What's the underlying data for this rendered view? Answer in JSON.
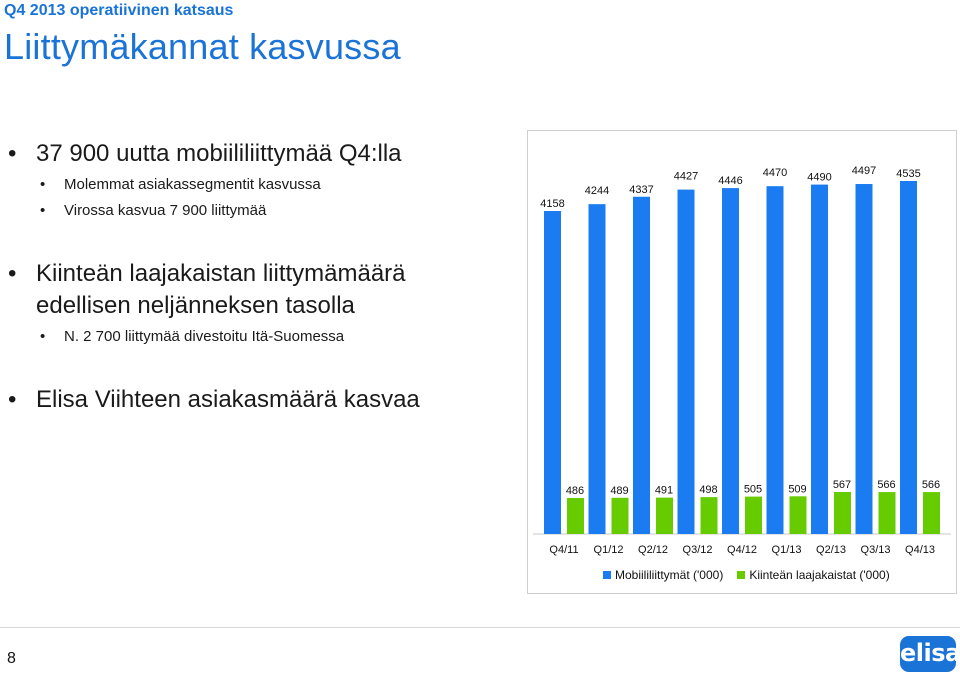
{
  "header": {
    "kicker": "Q4 2013 operatiivinen katsaus",
    "title": "Liittymäkannat kasvussa"
  },
  "bullets": {
    "b1": "37 900 uutta mobiililiittymää Q4:lla",
    "b1_sub1": "Molemmat asiakassegmentit kasvussa",
    "b1_sub2": "Virossa  kasvua  7 900  liittymää",
    "b2_line1": "Kiinteän laajakaistan liittymämäärä",
    "b2_line2": "edellisen neljänneksen tasolla",
    "b2_sub1": "N. 2 700 liittymää divestoitu Itä-Suomessa",
    "b3": "Elisa Viihteen asiakasmäärä kasvaa"
  },
  "footer": {
    "page_number": "8",
    "logo_text": "elisa"
  },
  "colors": {
    "accent": "#1a73d6",
    "mobile_series": "#1a7cf0",
    "broadband_series": "#66cc00"
  },
  "chart_data": {
    "type": "bar",
    "categories": [
      "Q4/11",
      "Q1/12",
      "Q2/12",
      "Q3/12",
      "Q4/12",
      "Q1/13",
      "Q2/13",
      "Q3/13",
      "Q4/13"
    ],
    "series": [
      {
        "name": "Mobiililiittymät ('000)",
        "values": [
          4158,
          4244,
          4337,
          4427,
          4446,
          4470,
          4490,
          4497,
          4535
        ]
      },
      {
        "name": "Kiinteän laajakaistat ('000)",
        "values": [
          486,
          489,
          491,
          498,
          505,
          509,
          567,
          566,
          566
        ]
      }
    ],
    "legend_position": "bottom",
    "grid": false
  }
}
